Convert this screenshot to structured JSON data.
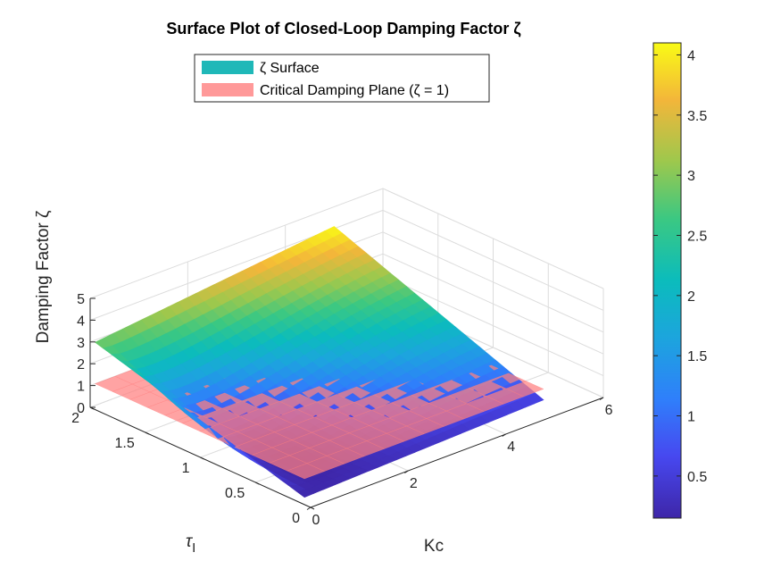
{
  "chart_data": {
    "type": "surface3d",
    "title": "Surface Plot of Closed-Loop Damping Factor ζ",
    "xlabel": "Kc",
    "ylabel": "τI",
    "zlabel": "Damping Factor ζ",
    "xlim": [
      0,
      6
    ],
    "ylim": [
      0,
      2
    ],
    "zlim": [
      0,
      5
    ],
    "xticks": [
      "0",
      "2",
      "4",
      "6"
    ],
    "yticks": [
      "0",
      "0.5",
      "1",
      "1.5",
      "2"
    ],
    "zticks": [
      "0",
      "1",
      "2",
      "3",
      "4",
      "5"
    ],
    "grid": true,
    "surface": {
      "name": "ζ Surface",
      "x_range": [
        0.1,
        5
      ],
      "y_range": [
        0.1,
        2
      ],
      "z_min": 0.15,
      "z_max": 4.1,
      "samples": [
        {
          "Kc": 0.1,
          "tauI": 2.0,
          "zeta": 2.9
        },
        {
          "Kc": 0.1,
          "tauI": 0.1,
          "zeta": 0.15
        },
        {
          "Kc": 5.0,
          "tauI": 2.0,
          "zeta": 4.1
        },
        {
          "Kc": 5.0,
          "tauI": 0.1,
          "zeta": 0.5
        }
      ]
    },
    "plane": {
      "name": "Critical Damping Plane (ζ = 1)",
      "z": 1,
      "color": "#ff7f7f"
    },
    "colorbar": {
      "ticks": [
        "0.5",
        "1",
        "1.5",
        "2",
        "2.5",
        "3",
        "3.5",
        "4"
      ],
      "values": [
        0.5,
        1,
        1.5,
        2,
        2.5,
        3,
        3.5,
        4
      ],
      "range": [
        0.15,
        4.1
      ],
      "colormap": "parula"
    },
    "legend": {
      "placement": "top",
      "entries": [
        {
          "label": "ζ Surface",
          "color": "#1fb8b8"
        },
        {
          "label": "Critical Damping Plane (ζ = 1)",
          "color": "#ff9999"
        }
      ]
    }
  }
}
